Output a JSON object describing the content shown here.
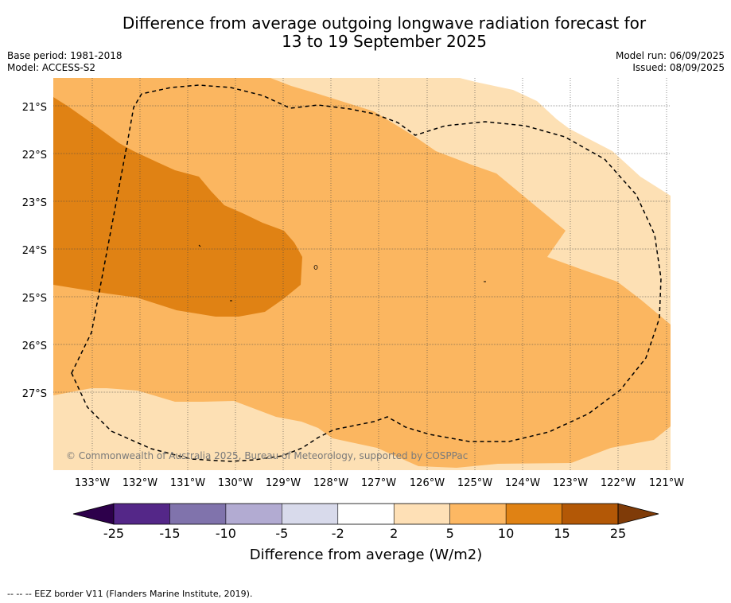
{
  "title": {
    "line1": "Difference from average outgoing longwave radiation forecast for",
    "line2": "13 to 19 September 2025"
  },
  "meta": {
    "base_period": "Base period: 1981-2018",
    "model": "Model: ACCESS-S2",
    "model_run": "Model run: 06/09/2025",
    "issued": "Issued: 08/09/2025"
  },
  "map": {
    "lat_labels": [
      "21°S",
      "22°S",
      "23°S",
      "24°S",
      "25°S",
      "26°S",
      "27°S"
    ],
    "lon_labels": [
      "133°W",
      "132°W",
      "131°W",
      "130°W",
      "129°W",
      "128°W",
      "127°W",
      "126°W",
      "125°W",
      "124°W",
      "123°W",
      "122°W",
      "121°W"
    ],
    "copyright": "© Commonwealth of Australia 2025, Bureau of Meteorology, supported by COSPPac",
    "colors": {
      "band_2_5": "#fde0b4",
      "band_5_10": "#fbb660",
      "band_10_15": "#e08214",
      "eez_line": "#000000"
    }
  },
  "colorbar": {
    "ticks": [
      "-25",
      "-15",
      "-10",
      "-5",
      "-2",
      "2",
      "5",
      "10",
      "15",
      "25"
    ],
    "colors": [
      "#542788",
      "#8073ac",
      "#b2abd2",
      "#d8daeb",
      "#ffffff",
      "#fee0b6",
      "#fdb863",
      "#e08214",
      "#b35806"
    ],
    "under_color": "#2d004b",
    "over_color": "#7f3b08",
    "label": "Difference from average (W/m2)"
  },
  "footer": "--  --  -- EEZ border V11 (Flanders Marine Institute, 2019)."
}
